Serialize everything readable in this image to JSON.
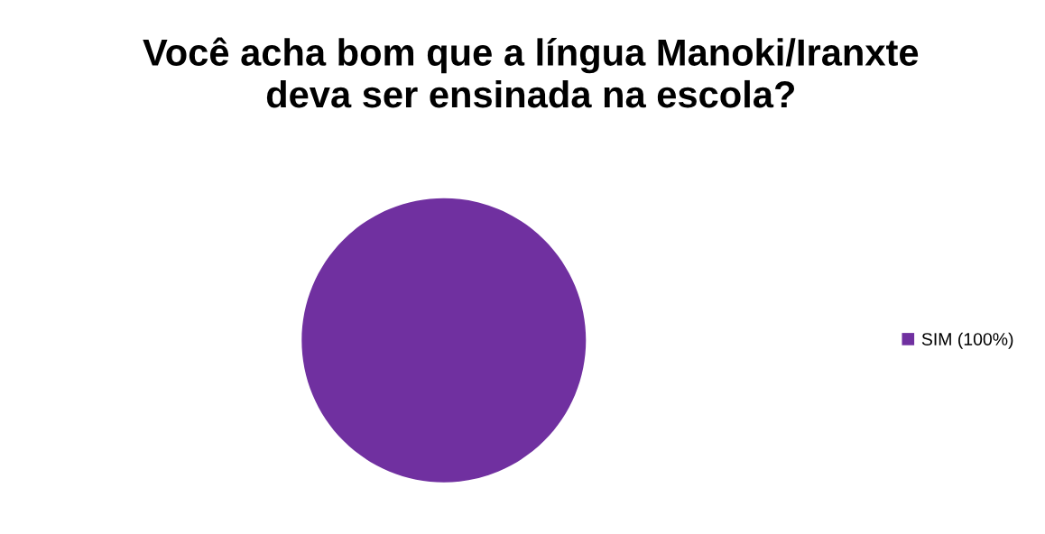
{
  "chart_data": {
    "type": "pie",
    "title": "Você acha bom que a língua Manoki/Iranxte\ndeva ser ensinada na escola?",
    "categories": [
      "SIM (100%)"
    ],
    "values": [
      100
    ],
    "colors": [
      "#7030a0"
    ],
    "legend": "right"
  }
}
